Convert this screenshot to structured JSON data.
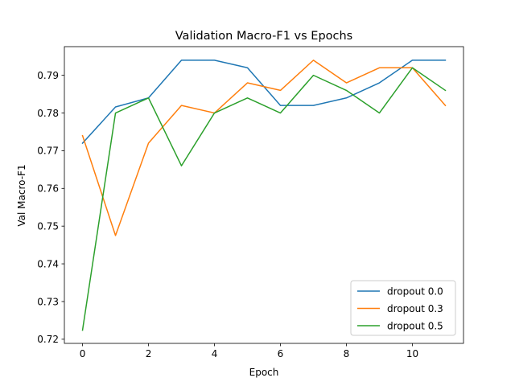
{
  "chart_data": {
    "type": "line",
    "title": "Validation Macro-F1 vs Epochs",
    "xlabel": "Epoch",
    "ylabel": "Val Macro-F1",
    "xlim": [
      -0.55,
      11.55
    ],
    "ylim": [
      0.7189,
      0.7976
    ],
    "xticks": [
      0,
      2,
      4,
      6,
      8,
      10
    ],
    "yticks": [
      0.72,
      0.73,
      0.74,
      0.75,
      0.76,
      0.77,
      0.78,
      0.79
    ],
    "ytick_labels": [
      "0.72",
      "0.73",
      "0.74",
      "0.75",
      "0.76",
      "0.77",
      "0.78",
      "0.79"
    ],
    "grid": false,
    "legend_position": "lower-right",
    "x": [
      0,
      1,
      2,
      3,
      4,
      5,
      6,
      7,
      8,
      9,
      10,
      11
    ],
    "series": [
      {
        "name": "dropout 0.0",
        "color": "#1f77b4",
        "values": [
          0.772,
          0.7816,
          0.784,
          0.794,
          0.794,
          0.792,
          0.782,
          0.782,
          0.784,
          0.788,
          0.794,
          0.794
        ]
      },
      {
        "name": "dropout 0.3",
        "color": "#ff7f0e",
        "values": [
          0.774,
          0.7475,
          0.772,
          0.782,
          0.78,
          0.788,
          0.786,
          0.794,
          0.788,
          0.792,
          0.792,
          0.782
        ]
      },
      {
        "name": "dropout 0.5",
        "color": "#2ca02c",
        "values": [
          0.7224,
          0.78,
          0.784,
          0.766,
          0.78,
          0.784,
          0.78,
          0.79,
          0.786,
          0.78,
          0.792,
          0.786
        ]
      }
    ]
  }
}
